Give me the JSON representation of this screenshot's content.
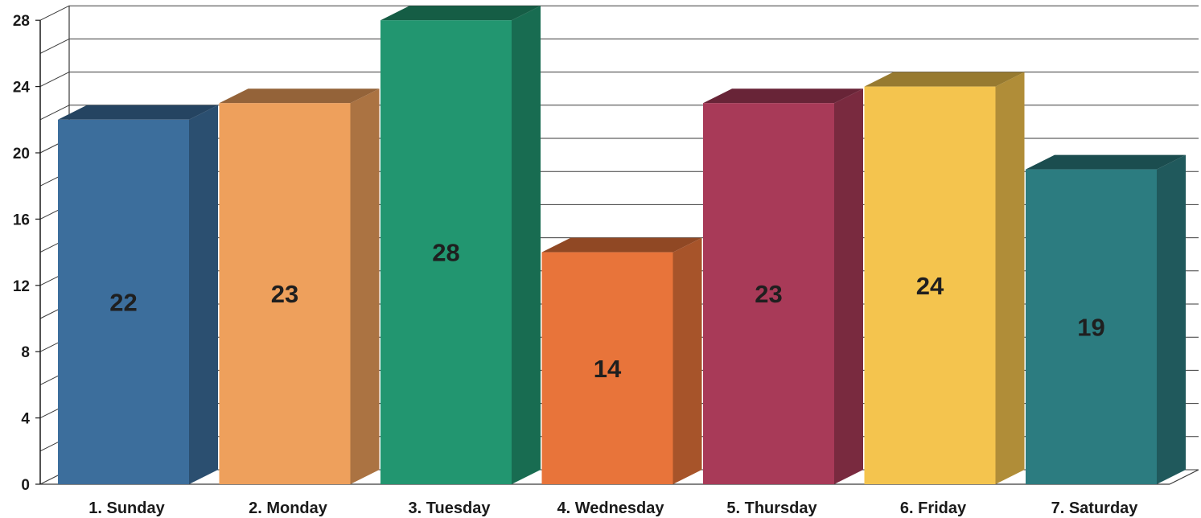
{
  "chart_data": {
    "type": "bar",
    "categories": [
      "1. Sunday",
      "2. Monday",
      "3. Tuesday",
      "4. Wednesday",
      "5. Thursday",
      "6. Friday",
      "7. Saturday"
    ],
    "values": [
      22,
      23,
      28,
      14,
      23,
      24,
      19
    ],
    "ylim": [
      0,
      28
    ],
    "yticks": [
      "0",
      "4",
      "8",
      "12",
      "16",
      "20",
      "24",
      "28"
    ],
    "grid": true,
    "style": "3d",
    "colors": [
      "#3c6e9c",
      "#eea05c",
      "#229670",
      "#e8743a",
      "#a83a58",
      "#f4c44e",
      "#2c7c80"
    ]
  }
}
